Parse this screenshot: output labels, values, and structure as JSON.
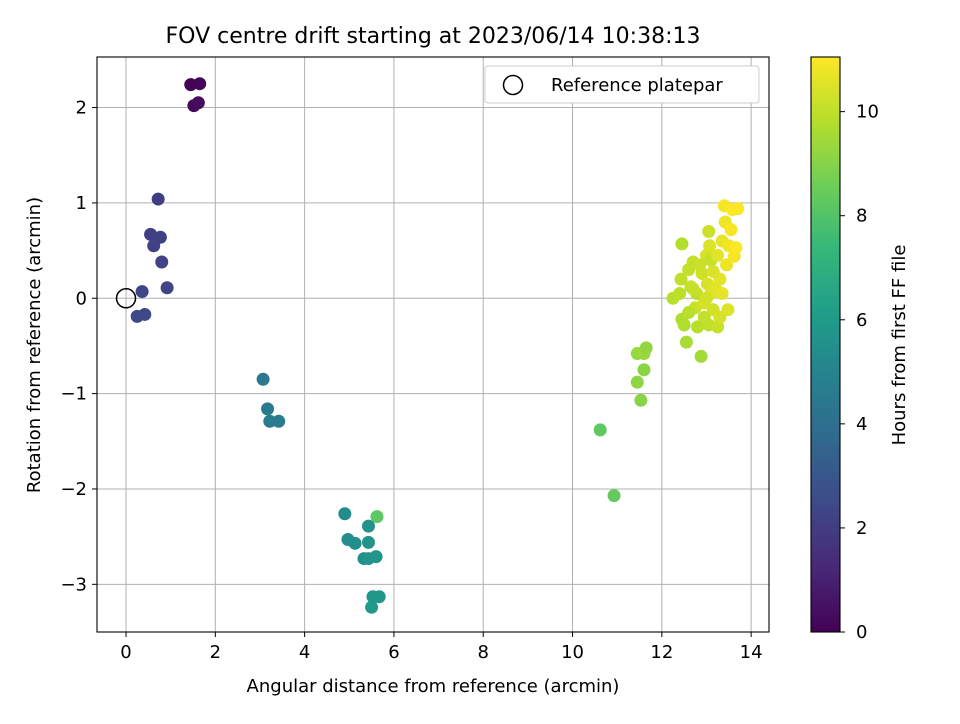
{
  "chart_data": {
    "type": "scatter",
    "title": "FOV centre drift starting at 2023/06/14 10:38:13",
    "xlabel": "Angular distance from reference (arcmin)",
    "ylabel": "Rotation from reference (arcmin)",
    "xlim": [
      -0.65,
      14.4
    ],
    "ylim": [
      -3.5,
      2.53
    ],
    "xticks": [
      0,
      2,
      4,
      6,
      8,
      10,
      12,
      14
    ],
    "yticks": [
      -3,
      -2,
      -1,
      0,
      1,
      2
    ],
    "grid": true,
    "legend": {
      "position": "top-right",
      "entries": [
        {
          "label": "Reference platepar",
          "marker": "open-circle"
        }
      ]
    },
    "reference_point": {
      "x": 0,
      "y": 0
    },
    "colorbar": {
      "label": "Hours from first FF file",
      "range": [
        0,
        11.05
      ],
      "ticks": [
        0,
        2,
        4,
        6,
        8,
        10
      ],
      "colormap": "viridis",
      "colors": [
        "#440154",
        "#482878",
        "#3e4989",
        "#31688e",
        "#26828e",
        "#1f9e89",
        "#35b779",
        "#6ece58",
        "#b5de2b",
        "#fde725"
      ]
    },
    "points": [
      {
        "x": 1.45,
        "y": 2.24,
        "h": 0.05
      },
      {
        "x": 1.65,
        "y": 2.25,
        "h": 0.15
      },
      {
        "x": 1.52,
        "y": 2.02,
        "h": 0.25
      },
      {
        "x": 1.62,
        "y": 2.05,
        "h": 0.35
      },
      {
        "x": 0.72,
        "y": 1.04,
        "h": 2.0
      },
      {
        "x": 0.55,
        "y": 0.67,
        "h": 2.1
      },
      {
        "x": 0.77,
        "y": 0.64,
        "h": 2.15
      },
      {
        "x": 0.62,
        "y": 0.55,
        "h": 2.2
      },
      {
        "x": 0.8,
        "y": 0.38,
        "h": 2.25
      },
      {
        "x": 0.92,
        "y": 0.11,
        "h": 2.3
      },
      {
        "x": 0.36,
        "y": 0.07,
        "h": 2.35
      },
      {
        "x": 0.25,
        "y": -0.19,
        "h": 2.4
      },
      {
        "x": 0.42,
        "y": -0.17,
        "h": 2.45
      },
      {
        "x": 3.07,
        "y": -0.85,
        "h": 4.5
      },
      {
        "x": 3.17,
        "y": -1.16,
        "h": 4.55
      },
      {
        "x": 3.22,
        "y": -1.29,
        "h": 4.6
      },
      {
        "x": 3.42,
        "y": -1.29,
        "h": 4.65
      },
      {
        "x": 4.9,
        "y": -2.26,
        "h": 5.4
      },
      {
        "x": 4.97,
        "y": -2.53,
        "h": 5.45
      },
      {
        "x": 5.13,
        "y": -2.57,
        "h": 5.5
      },
      {
        "x": 5.33,
        "y": -2.73,
        "h": 5.55
      },
      {
        "x": 5.43,
        "y": -2.39,
        "h": 5.6
      },
      {
        "x": 5.43,
        "y": -2.56,
        "h": 5.65
      },
      {
        "x": 5.43,
        "y": -2.73,
        "h": 5.7
      },
      {
        "x": 5.6,
        "y": -2.71,
        "h": 5.75
      },
      {
        "x": 5.53,
        "y": -3.13,
        "h": 5.8
      },
      {
        "x": 5.67,
        "y": -3.13,
        "h": 5.85
      },
      {
        "x": 5.5,
        "y": -3.24,
        "h": 5.9
      },
      {
        "x": 5.62,
        "y": -2.29,
        "h": 8.2
      },
      {
        "x": 10.62,
        "y": -1.38,
        "h": 8.25
      },
      {
        "x": 10.93,
        "y": -2.07,
        "h": 8.4
      },
      {
        "x": 11.45,
        "y": -0.58,
        "h": 9.3
      },
      {
        "x": 11.6,
        "y": -0.58,
        "h": 9.35
      },
      {
        "x": 11.65,
        "y": -0.52,
        "h": 9.2
      },
      {
        "x": 11.6,
        "y": -0.75,
        "h": 9.1
      },
      {
        "x": 11.45,
        "y": -0.88,
        "h": 9.15
      },
      {
        "x": 11.53,
        "y": -1.07,
        "h": 9.05
      },
      {
        "x": 12.45,
        "y": 0.57,
        "h": 9.8
      },
      {
        "x": 12.25,
        "y": 0.0,
        "h": 9.9
      },
      {
        "x": 12.4,
        "y": 0.05,
        "h": 9.95
      },
      {
        "x": 12.43,
        "y": 0.2,
        "h": 10.0
      },
      {
        "x": 12.55,
        "y": -0.46,
        "h": 9.6
      },
      {
        "x": 12.88,
        "y": -0.61,
        "h": 9.5
      },
      {
        "x": 12.45,
        "y": -0.22,
        "h": 9.7
      },
      {
        "x": 12.5,
        "y": -0.28,
        "h": 9.75
      },
      {
        "x": 12.6,
        "y": 0.3,
        "h": 10.05
      },
      {
        "x": 12.7,
        "y": 0.38,
        "h": 10.1
      },
      {
        "x": 12.65,
        "y": 0.12,
        "h": 10.15
      },
      {
        "x": 12.75,
        "y": -0.1,
        "h": 10.2
      },
      {
        "x": 12.8,
        "y": -0.3,
        "h": 9.85
      },
      {
        "x": 12.9,
        "y": 0.26,
        "h": 10.25
      },
      {
        "x": 12.95,
        "y": -0.05,
        "h": 10.3
      },
      {
        "x": 13.0,
        "y": 0.45,
        "h": 10.35
      },
      {
        "x": 13.02,
        "y": 0.15,
        "h": 10.4
      },
      {
        "x": 13.05,
        "y": -0.28,
        "h": 10.0
      },
      {
        "x": 13.05,
        "y": 0.7,
        "h": 10.2
      },
      {
        "x": 13.07,
        "y": 0.55,
        "h": 10.45
      },
      {
        "x": 13.1,
        "y": 0.05,
        "h": 10.5
      },
      {
        "x": 13.1,
        "y": 0.4,
        "h": 10.1
      },
      {
        "x": 13.15,
        "y": -0.12,
        "h": 10.3
      },
      {
        "x": 13.2,
        "y": 0.1,
        "h": 10.55
      },
      {
        "x": 13.25,
        "y": -0.3,
        "h": 10.15
      },
      {
        "x": 13.3,
        "y": 0.2,
        "h": 10.6
      },
      {
        "x": 13.35,
        "y": 0.05,
        "h": 10.65
      },
      {
        "x": 13.35,
        "y": 0.6,
        "h": 10.7
      },
      {
        "x": 13.4,
        "y": 0.97,
        "h": 10.9
      },
      {
        "x": 13.42,
        "y": 0.8,
        "h": 10.8
      },
      {
        "x": 13.45,
        "y": 0.35,
        "h": 10.75
      },
      {
        "x": 13.48,
        "y": -0.12,
        "h": 10.5
      },
      {
        "x": 13.5,
        "y": 0.55,
        "h": 10.85
      },
      {
        "x": 13.55,
        "y": 0.72,
        "h": 10.95
      },
      {
        "x": 13.58,
        "y": 0.93,
        "h": 11.0
      },
      {
        "x": 13.62,
        "y": 0.44,
        "h": 10.9
      },
      {
        "x": 13.66,
        "y": 0.53,
        "h": 11.0
      },
      {
        "x": 13.7,
        "y": 0.94,
        "h": 11.05
      },
      {
        "x": 12.78,
        "y": 0.05,
        "h": 10.0
      },
      {
        "x": 12.85,
        "y": 0.35,
        "h": 10.2
      },
      {
        "x": 12.6,
        "y": -0.15,
        "h": 9.9
      },
      {
        "x": 12.95,
        "y": -0.2,
        "h": 10.05
      },
      {
        "x": 13.15,
        "y": 0.28,
        "h": 10.4
      },
      {
        "x": 13.3,
        "y": -0.2,
        "h": 10.35
      },
      {
        "x": 12.7,
        "y": 0.1,
        "h": 10.1
      },
      {
        "x": 13.0,
        "y": 0.0,
        "h": 10.3
      },
      {
        "x": 13.25,
        "y": 0.45,
        "h": 10.6
      }
    ]
  }
}
